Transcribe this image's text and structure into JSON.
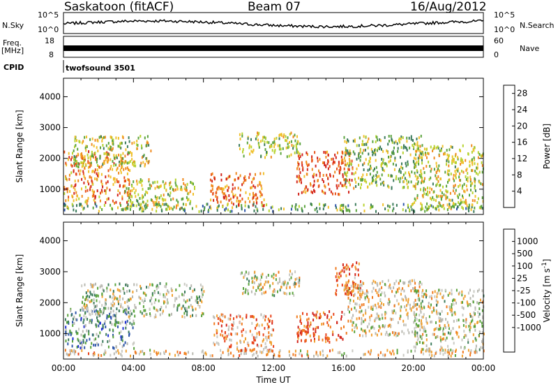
{
  "header": {
    "site": "Saskatoon (fitACF)",
    "beam": "Beam 07",
    "date": "16/Aug/2012"
  },
  "ribbon": {
    "nsky_label": "N.Sky",
    "nsearch_label": "N.Search",
    "freq_label_line1": "Freq.",
    "freq_label_line2": "[MHz]",
    "nave_label": "Nave",
    "cpid_label": "CPID",
    "cpid_value": "twofsound 3501",
    "noise_ticks": [
      "10^5",
      "10^0"
    ],
    "freq_ticks": [
      "18",
      "8"
    ],
    "nave_ticks": [
      "60",
      "0"
    ]
  },
  "colors": {
    "power": [
      "#1f2fd6",
      "#2d55a8",
      "#3a7a5a",
      "#5aa33c",
      "#b7d32f",
      "#f0c02a",
      "#f08a1e",
      "#e8521a",
      "#d2231a"
    ],
    "velocity": [
      "#1f2fd6",
      "#2d55a8",
      "#3a7a5a",
      "#5aa33c",
      "#b8b8b0",
      "#c9c9c2",
      "#f0a030",
      "#f07a1e",
      "#e8421a",
      "#d2231a"
    ]
  },
  "chart_data": [
    {
      "type": "heatmap",
      "parameter": "power",
      "ylabel": "Slant Range [km]",
      "xlabel": "Time UT",
      "xlim": [
        "00:00",
        "24:00"
      ],
      "ylim": [
        180,
        4600
      ],
      "x_ticks": [
        "00:00",
        "04:00",
        "08:00",
        "12:00",
        "16:00",
        "20:00",
        "00:00"
      ],
      "y_ticks": [
        1000,
        2000,
        3000,
        4000
      ],
      "colorbar": {
        "label": "Power [dB]",
        "ticks": [
          4,
          8,
          12,
          16,
          20,
          24,
          28
        ],
        "range": [
          0,
          30
        ]
      },
      "echo_regions": [
        {
          "t_start": 0.0,
          "t_end": 3.8,
          "r_min": 500,
          "r_max": 2200,
          "level": 0.75
        },
        {
          "t_start": 0.5,
          "t_end": 5.0,
          "r_min": 1700,
          "r_max": 2700,
          "level": 0.5
        },
        {
          "t_start": 3.5,
          "t_end": 7.5,
          "r_min": 300,
          "r_max": 1300,
          "level": 0.55
        },
        {
          "t_start": 8.3,
          "t_end": 11.5,
          "r_min": 400,
          "r_max": 1500,
          "level": 0.8
        },
        {
          "t_start": 10.0,
          "t_end": 13.5,
          "r_min": 2000,
          "r_max": 2800,
          "level": 0.5
        },
        {
          "t_start": 13.3,
          "t_end": 16.5,
          "r_min": 800,
          "r_max": 2200,
          "level": 0.85
        },
        {
          "t_start": 16.0,
          "t_end": 20.5,
          "r_min": 1000,
          "r_max": 2700,
          "level": 0.45
        },
        {
          "t_start": 20.0,
          "t_end": 24.0,
          "r_min": 300,
          "r_max": 2400,
          "level": 0.55
        },
        {
          "t_start": 0.0,
          "t_end": 24.0,
          "r_min": 250,
          "r_max": 500,
          "level": 0.4
        }
      ]
    },
    {
      "type": "heatmap",
      "parameter": "velocity",
      "ylabel": "Slant Range [km]",
      "xlabel": "Time UT",
      "xlim": [
        "00:00",
        "24:00"
      ],
      "ylim": [
        180,
        4600
      ],
      "x_ticks": [
        "00:00",
        "04:00",
        "08:00",
        "12:00",
        "16:00",
        "20:00",
        "00:00"
      ],
      "y_ticks": [
        1000,
        2000,
        3000,
        4000
      ],
      "colorbar": {
        "label": "Velocity [m s^-1]",
        "ticks": [
          1000,
          500,
          100,
          25,
          -25,
          -100,
          -500,
          -1000
        ]
      },
      "echo_regions": [
        {
          "t_start": 0.0,
          "t_end": 4.0,
          "r_min": 500,
          "r_max": 1800,
          "level": 0.3
        },
        {
          "t_start": 1.0,
          "t_end": 8.0,
          "r_min": 1500,
          "r_max": 2600,
          "level": 0.45
        },
        {
          "t_start": 8.5,
          "t_end": 12.0,
          "r_min": 400,
          "r_max": 1600,
          "level": 0.7
        },
        {
          "t_start": 10.0,
          "t_end": 13.5,
          "r_min": 2200,
          "r_max": 3000,
          "level": 0.5
        },
        {
          "t_start": 13.3,
          "t_end": 16.0,
          "r_min": 700,
          "r_max": 1700,
          "level": 0.85
        },
        {
          "t_start": 15.5,
          "t_end": 17.0,
          "r_min": 2200,
          "r_max": 3300,
          "level": 0.8
        },
        {
          "t_start": 16.0,
          "t_end": 20.5,
          "r_min": 900,
          "r_max": 2700,
          "level": 0.55
        },
        {
          "t_start": 20.0,
          "t_end": 24.0,
          "r_min": 400,
          "r_max": 2400,
          "level": 0.5
        },
        {
          "t_start": 0.0,
          "t_end": 24.0,
          "r_min": 250,
          "r_max": 450,
          "level": 0.6
        }
      ]
    }
  ]
}
